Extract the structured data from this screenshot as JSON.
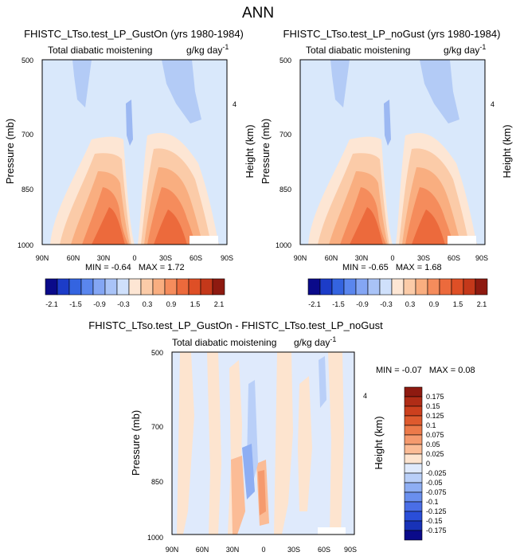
{
  "figure_title": "ANN",
  "chart_data": [
    {
      "type": "heatmap",
      "title": "FHISTC_LTso.test_LP_GustOn (yrs 1980-1984)",
      "subtitle_left": "Total diabatic moistening",
      "units_base": "g/kg day",
      "units_exp": "-1",
      "x_ticks": [
        "90N",
        "60N",
        "30N",
        "0",
        "30S",
        "60S",
        "90S"
      ],
      "y_ticks": [
        "500",
        "700",
        "850",
        "1000"
      ],
      "ylabel": "Pressure (mb)",
      "right_label": "Height (km)",
      "right_ticks": [
        "4"
      ],
      "stats": {
        "min_label": "MIN =",
        "min": "-0.64",
        "max_label": "MAX =",
        "max": "1.72"
      },
      "colorbar": {
        "orientation": "horizontal",
        "labels": [
          "-2.1",
          "-1.5",
          "-0.9",
          "-0.3",
          "0.3",
          "0.9",
          "1.5",
          "2.1"
        ]
      }
    },
    {
      "type": "heatmap",
      "title": "FHISTC_LTso.test_LP_noGust (yrs 1980-1984)",
      "subtitle_left": "Total diabatic moistening",
      "units_base": "g/kg day",
      "units_exp": "-1",
      "x_ticks": [
        "90N",
        "60N",
        "30N",
        "0",
        "30S",
        "60S",
        "90S"
      ],
      "y_ticks": [
        "500",
        "700",
        "850",
        "1000"
      ],
      "ylabel": "Pressure (mb)",
      "right_label": "Height (km)",
      "right_ticks": [
        "4"
      ],
      "stats": {
        "min_label": "MIN =",
        "min": "-0.65",
        "max_label": "MAX =",
        "max": "1.68"
      },
      "colorbar": {
        "orientation": "horizontal",
        "labels": [
          "-2.1",
          "-1.5",
          "-0.9",
          "-0.3",
          "0.3",
          "0.9",
          "1.5",
          "2.1"
        ]
      }
    },
    {
      "type": "heatmap",
      "title": "FHISTC_LTso.test_LP_GustOn - FHISTC_LTso.test_LP_noGust",
      "subtitle_left": "Total diabatic moistening",
      "units_base": "g/kg day",
      "units_exp": "-1",
      "x_ticks": [
        "90N",
        "60N",
        "30N",
        "0",
        "30S",
        "60S",
        "90S"
      ],
      "y_ticks": [
        "500",
        "700",
        "850",
        "1000"
      ],
      "ylabel": "Pressure (mb)",
      "right_label": "Height (km)",
      "right_ticks": [
        "4"
      ],
      "stats": {
        "min_label": "MIN =",
        "min": "-0.07",
        "max_label": "MAX =",
        "max": "0.08"
      },
      "colorbar": {
        "orientation": "vertical",
        "labels": [
          "0.175",
          "0.15",
          "0.125",
          "0.1",
          "0.075",
          "0.05",
          "0.025",
          "0",
          "-0.025",
          "-0.05",
          "-0.075",
          "-0.1",
          "-0.125",
          "-0.15",
          "-0.175"
        ]
      }
    }
  ],
  "colors": {
    "levels_horizontal": [
      "#0a0a8a",
      "#1c3cc8",
      "#3464e0",
      "#5a86ee",
      "#84a6f4",
      "#a9c3f7",
      "#cfe0fb",
      "#fde6d4",
      "#fbcba8",
      "#f9ae80",
      "#f58c5c",
      "#ec6a3c",
      "#de4f26",
      "#c4381a",
      "#8e1a10"
    ],
    "levels_vertical": [
      "#8e1a10",
      "#b02c16",
      "#cc401e",
      "#de5a2e",
      "#ec7a4a",
      "#f59a6e",
      "#fbbc96",
      "#fde4cf",
      "#dfeafc",
      "#b9cff8",
      "#8eaef3",
      "#6a8fee",
      "#4a6ee6",
      "#2a4ed8",
      "#1832b8",
      "#0a0a8a"
    ],
    "background": "#d9e8fb"
  }
}
